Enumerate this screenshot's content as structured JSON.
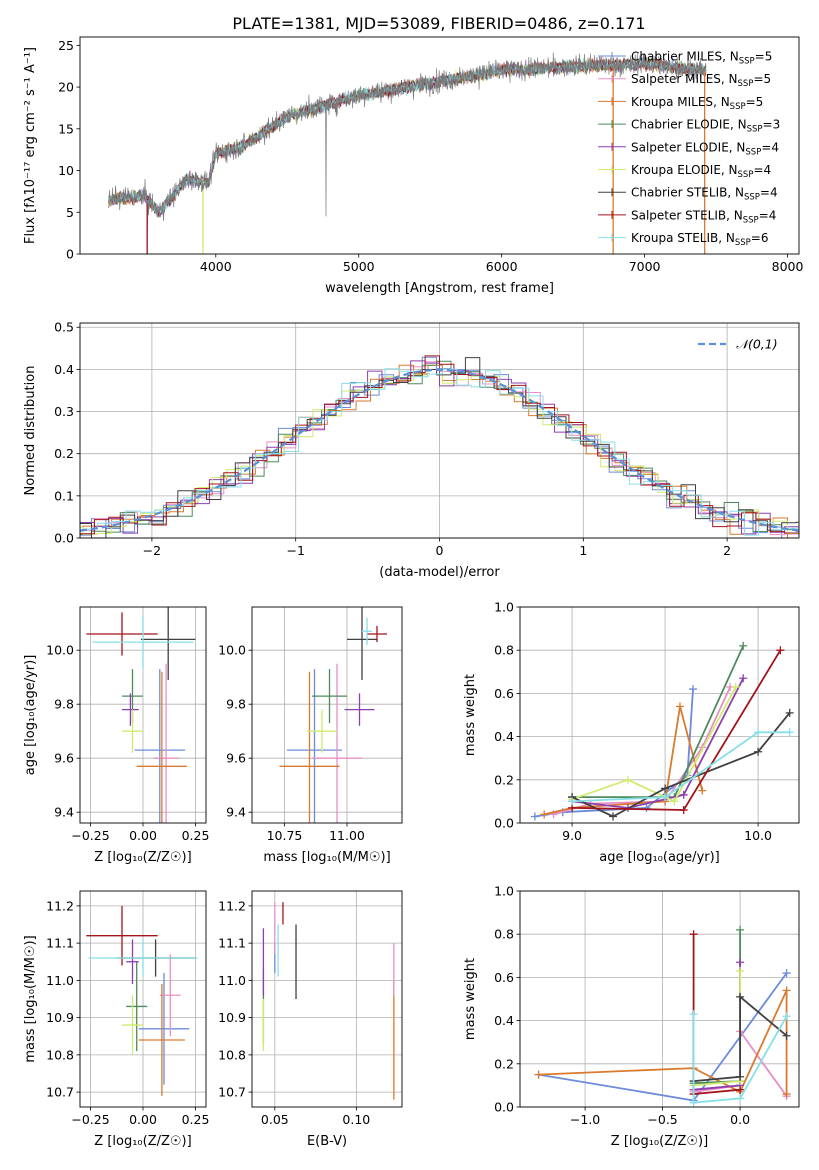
{
  "figure": {
    "title": "PLATE=1381, MJD=53089, FIBERID=0486, z=0.171"
  },
  "models": [
    {
      "name": "Chabrier MILES",
      "nssp": "5",
      "color": "#6b8cdb"
    },
    {
      "name": "Salpeter MILES",
      "nssp": "5",
      "color": "#e88fc8"
    },
    {
      "name": "Kroupa MILES",
      "nssp": "5",
      "color": "#d97a2e"
    },
    {
      "name": "Chabrier ELODIE",
      "nssp": "3",
      "color": "#4e8a5c"
    },
    {
      "name": "Salpeter ELODIE",
      "nssp": "4",
      "color": "#8e3fae"
    },
    {
      "name": "Kroupa ELODIE",
      "nssp": "4",
      "color": "#cfeb6e"
    },
    {
      "name": "Chabrier STELIB",
      "nssp": "4",
      "color": "#404040"
    },
    {
      "name": "Salpeter STELIB",
      "nssp": "4",
      "color": "#a3141c"
    },
    {
      "name": "Kroupa STELIB",
      "nssp": "6",
      "color": "#86dfe8"
    }
  ],
  "chart_data": [
    {
      "id": "spectrum",
      "type": "line",
      "xlabel": "wavelength [Angstrom, rest frame]",
      "ylabel": "Flux [fλ10⁻¹⁷ erg cm⁻² s⁻¹ A⁻¹]",
      "xlim": [
        3050,
        8080
      ],
      "ylim": [
        0,
        26
      ],
      "xticks": [
        4000,
        5000,
        6000,
        7000,
        8000
      ],
      "yticks": [
        0,
        5,
        10,
        15,
        20,
        25
      ],
      "grid": false,
      "legend": "right",
      "x_start": 3250,
      "x_end": 7430,
      "continuum_knots": {
        "x": [
          3250,
          3500,
          3600,
          3800,
          3950,
          4000,
          4200,
          4500,
          5000,
          5500,
          6000,
          6500,
          7000,
          7430
        ],
        "y": [
          6.5,
          7.0,
          5.0,
          9.0,
          8.5,
          12.0,
          13.0,
          16.5,
          19.0,
          20.5,
          22.0,
          22.5,
          22.8,
          22.0
        ]
      },
      "model_drop_wavelengths": [
        3520,
        3910,
        6780,
        7420
      ]
    },
    {
      "id": "residuals",
      "type": "step",
      "xlabel": "(data-model)/error",
      "ylabel": "Normed distribution",
      "xlim": [
        -2.5,
        2.5
      ],
      "ylim": [
        0,
        0.51
      ],
      "xticks": [
        -2,
        -1,
        0,
        1,
        2
      ],
      "yticks": [
        0.0,
        0.1,
        0.2,
        0.3,
        0.4,
        0.5
      ],
      "grid": true,
      "legend": "top-right",
      "reference_label": "𝒩(0,1)",
      "reference_color": "#5b8fd9",
      "bin_width": 0.1
    },
    {
      "id": "age_vs_Z",
      "type": "errorbar",
      "xlabel": "Z [log₁₀(Z/Z☉)]",
      "ylabel": "age  [log₁₀(age/yr)]",
      "xlim": [
        -0.3,
        0.3
      ],
      "ylim": [
        9.36,
        10.16
      ],
      "xticks": [
        -0.25,
        0.0,
        0.25
      ],
      "yticks": [
        9.4,
        9.6,
        9.8,
        10.0
      ],
      "grid": true,
      "points": [
        {
          "m": 0,
          "x": 0.08,
          "xe": 0.12,
          "y": 9.63,
          "ye": 0.3
        },
        {
          "m": 1,
          "x": 0.11,
          "xe": 0.06,
          "y": 9.6,
          "ye": 0.35
        },
        {
          "m": 2,
          "x": 0.09,
          "xe": 0.12,
          "y": 9.57,
          "ye": 0.35
        },
        {
          "m": 3,
          "x": -0.05,
          "xe": 0.05,
          "y": 9.83,
          "ye": 0.1
        },
        {
          "m": 4,
          "x": -0.06,
          "xe": 0.04,
          "y": 9.78,
          "ye": 0.06
        },
        {
          "m": 5,
          "x": -0.05,
          "xe": 0.05,
          "y": 9.7,
          "ye": 0.08
        },
        {
          "m": 6,
          "x": 0.12,
          "xe": 0.13,
          "y": 10.04,
          "ye": 0.15
        },
        {
          "m": 7,
          "x": -0.1,
          "xe": 0.17,
          "y": 10.06,
          "ye": 0.08
        },
        {
          "m": 8,
          "x": 0.0,
          "xe": 0.24,
          "y": 10.03,
          "ye": 0.1
        }
      ]
    },
    {
      "id": "age_vs_mass",
      "type": "errorbar",
      "xlabel": "mass [log₁₀(M/M☉)]",
      "ylabel": "",
      "xlim": [
        10.62,
        11.22
      ],
      "ylim": [
        9.36,
        10.16
      ],
      "xticks": [
        10.75,
        11.0
      ],
      "xtick_labels": [
        "10.75",
        "11.00"
      ],
      "yticks": [
        9.4,
        9.6,
        9.8,
        10.0
      ],
      "grid": true,
      "points": [
        {
          "m": 0,
          "x": 10.87,
          "xe": 0.11,
          "y": 9.63,
          "ye": 0.3
        },
        {
          "m": 1,
          "x": 10.96,
          "xe": 0.1,
          "y": 9.6,
          "ye": 0.35
        },
        {
          "m": 2,
          "x": 10.85,
          "xe": 0.12,
          "y": 9.57,
          "ye": 0.35
        },
        {
          "m": 3,
          "x": 10.93,
          "xe": 0.07,
          "y": 9.83,
          "ye": 0.1
        },
        {
          "m": 4,
          "x": 11.05,
          "xe": 0.06,
          "y": 9.78,
          "ye": 0.06
        },
        {
          "m": 5,
          "x": 10.9,
          "xe": 0.06,
          "y": 9.7,
          "ye": 0.08
        },
        {
          "m": 6,
          "x": 11.06,
          "xe": 0.06,
          "y": 10.04,
          "ye": 0.15
        },
        {
          "m": 7,
          "x": 11.12,
          "xe": 0.04,
          "y": 10.06,
          "ye": 0.03
        },
        {
          "m": 8,
          "x": 11.08,
          "xe": 0.02,
          "y": 10.07,
          "ye": 0.05
        }
      ]
    },
    {
      "id": "mass_weight_vs_age",
      "type": "line",
      "xlabel": "age  [log₁₀(age/yr)]",
      "ylabel": "mass weight",
      "xlim": [
        8.72,
        10.22
      ],
      "ylim": [
        0,
        1
      ],
      "xticks": [
        9.0,
        9.5,
        10.0
      ],
      "yticks": [
        0.0,
        0.2,
        0.4,
        0.6,
        0.8,
        1.0
      ],
      "grid": true,
      "series": [
        {
          "m": 0,
          "x": [
            8.8,
            8.95,
            9.4,
            9.62,
            9.65
          ],
          "y": [
            0.03,
            0.05,
            0.07,
            0.22,
            0.62
          ]
        },
        {
          "m": 1,
          "x": [
            8.9,
            9.1,
            9.5,
            9.7,
            9.85
          ],
          "y": [
            0.04,
            0.09,
            0.1,
            0.35,
            0.63
          ]
        },
        {
          "m": 2,
          "x": [
            8.85,
            9.0,
            9.5,
            9.58,
            9.7
          ],
          "y": [
            0.04,
            0.07,
            0.1,
            0.54,
            0.15
          ]
        },
        {
          "m": 3,
          "x": [
            9.0,
            9.55,
            9.92
          ],
          "y": [
            0.12,
            0.12,
            0.82
          ]
        },
        {
          "m": 4,
          "x": [
            9.0,
            9.3,
            9.6,
            9.92
          ],
          "y": [
            0.1,
            0.07,
            0.13,
            0.67
          ]
        },
        {
          "m": 5,
          "x": [
            9.0,
            9.3,
            9.55,
            9.88
          ],
          "y": [
            0.11,
            0.2,
            0.1,
            0.63
          ]
        },
        {
          "m": 6,
          "x": [
            9.0,
            9.22,
            9.5,
            10.0,
            10.17
          ],
          "y": [
            0.12,
            0.03,
            0.16,
            0.33,
            0.51
          ]
        },
        {
          "m": 7,
          "x": [
            9.0,
            9.6,
            10.12
          ],
          "y": [
            0.07,
            0.06,
            0.8
          ]
        },
        {
          "m": 8,
          "x": [
            9.0,
            9.5,
            10.0,
            10.17
          ],
          "y": [
            0.1,
            0.12,
            0.42,
            0.42
          ]
        }
      ]
    },
    {
      "id": "mass_vs_Z",
      "type": "errorbar",
      "xlabel": "Z [log₁₀(Z/Z☉)]",
      "ylabel": "mass [log₁₀(M/M☉)]",
      "xlim": [
        -0.3,
        0.3
      ],
      "ylim": [
        10.66,
        11.24
      ],
      "xticks": [
        -0.25,
        0.0,
        0.25
      ],
      "yticks": [
        10.7,
        10.8,
        10.9,
        11.0,
        11.1,
        11.2
      ],
      "grid": true,
      "points": [
        {
          "m": 0,
          "x": 0.1,
          "xe": 0.12,
          "y": 10.87,
          "ye": 0.15
        },
        {
          "m": 1,
          "x": 0.13,
          "xe": 0.05,
          "y": 10.96,
          "ye": 0.11
        },
        {
          "m": 2,
          "x": 0.09,
          "xe": 0.11,
          "y": 10.84,
          "ye": 0.15
        },
        {
          "m": 3,
          "x": -0.03,
          "xe": 0.05,
          "y": 10.93,
          "ye": 0.12
        },
        {
          "m": 4,
          "x": -0.05,
          "xe": 0.03,
          "y": 11.05,
          "ye": 0.06
        },
        {
          "m": 5,
          "x": -0.05,
          "xe": 0.05,
          "y": 10.88,
          "ye": 0.08
        },
        {
          "m": 6,
          "x": 0.06,
          "xe": 0.19,
          "y": 11.06,
          "ye": 0.05
        },
        {
          "m": 7,
          "x": -0.1,
          "xe": 0.17,
          "y": 11.12,
          "ye": 0.08
        },
        {
          "m": 8,
          "x": 0.0,
          "xe": 0.26,
          "y": 11.06,
          "ye": 0.05
        }
      ]
    },
    {
      "id": "mass_vs_ebv",
      "type": "errorbar",
      "xlabel": "E(B-V)",
      "ylabel": "",
      "xlim": [
        0.036,
        0.128
      ],
      "ylim": [
        10.66,
        11.24
      ],
      "xticks": [
        0.05,
        0.1
      ],
      "xtick_labels": [
        "0.05",
        "0.10"
      ],
      "yticks": [
        10.7,
        10.8,
        10.9,
        11.0,
        11.1,
        11.2
      ],
      "grid": true,
      "points": [
        {
          "m": 0,
          "x": 0.05,
          "y": 11.06,
          "ye": 0.04
        },
        {
          "m": 1,
          "x": 0.05,
          "y": 11.14,
          "ye": 0.07
        },
        {
          "m": 2,
          "x": 0.123,
          "y": 10.84,
          "ye": 0.16
        },
        {
          "m": 3,
          "x": 0.043,
          "y": 10.93,
          "ye": 0.1
        },
        {
          "m": 4,
          "x": 0.043,
          "y": 11.05,
          "ye": 0.09
        },
        {
          "m": 5,
          "x": 0.043,
          "y": 10.88,
          "ye": 0.07
        },
        {
          "m": 6,
          "x": 0.063,
          "y": 11.05,
          "ye": 0.1
        },
        {
          "m": 7,
          "x": 0.055,
          "y": 11.18,
          "ye": 0.03
        },
        {
          "m": 8,
          "x": 0.052,
          "y": 11.08,
          "ye": 0.07
        },
        {
          "m": 1,
          "x": 0.123,
          "y": 11.03,
          "ye": 0.07
        }
      ]
    },
    {
      "id": "mass_weight_vs_Z",
      "type": "line",
      "xlabel": "Z [log₁₀(Z/Z☉)]",
      "ylabel": "mass weight",
      "xlim": [
        -1.42,
        0.38
      ],
      "ylim": [
        0,
        1
      ],
      "xticks": [
        -1.0,
        -0.5,
        0.0
      ],
      "yticks": [
        0.0,
        0.2,
        0.4,
        0.6,
        0.8,
        1.0
      ],
      "grid": true,
      "series": [
        {
          "m": 0,
          "x": [
            -1.3,
            -0.3,
            0.3
          ],
          "y": [
            0.15,
            0.03,
            0.62
          ]
        },
        {
          "m": 1,
          "x": [
            -0.3,
            0.0,
            0.0,
            0.3
          ],
          "y": [
            0.07,
            0.1,
            0.35,
            0.05
          ]
        },
        {
          "m": 2,
          "x": [
            -1.3,
            -0.3,
            0.0,
            0.3,
            0.3
          ],
          "y": [
            0.15,
            0.18,
            0.07,
            0.54,
            0.06
          ]
        },
        {
          "m": 3,
          "x": [
            -0.3,
            0.0,
            0.0
          ],
          "y": [
            0.11,
            0.12,
            0.82
          ]
        },
        {
          "m": 4,
          "x": [
            -0.3,
            0.0,
            0.0
          ],
          "y": [
            0.08,
            0.1,
            0.67
          ]
        },
        {
          "m": 5,
          "x": [
            -0.3,
            0.0,
            0.0
          ],
          "y": [
            0.1,
            0.12,
            0.63
          ]
        },
        {
          "m": 6,
          "x": [
            -0.3,
            0.0,
            0.0,
            0.3
          ],
          "y": [
            0.12,
            0.14,
            0.51,
            0.33
          ]
        },
        {
          "m": 7,
          "x": [
            -0.3,
            -0.3,
            0.0
          ],
          "y": [
            0.8,
            0.06,
            0.08
          ]
        },
        {
          "m": 8,
          "x": [
            -0.3,
            -0.3,
            0.0,
            0.3
          ],
          "y": [
            0.43,
            0.02,
            0.04,
            0.42
          ]
        }
      ]
    }
  ]
}
